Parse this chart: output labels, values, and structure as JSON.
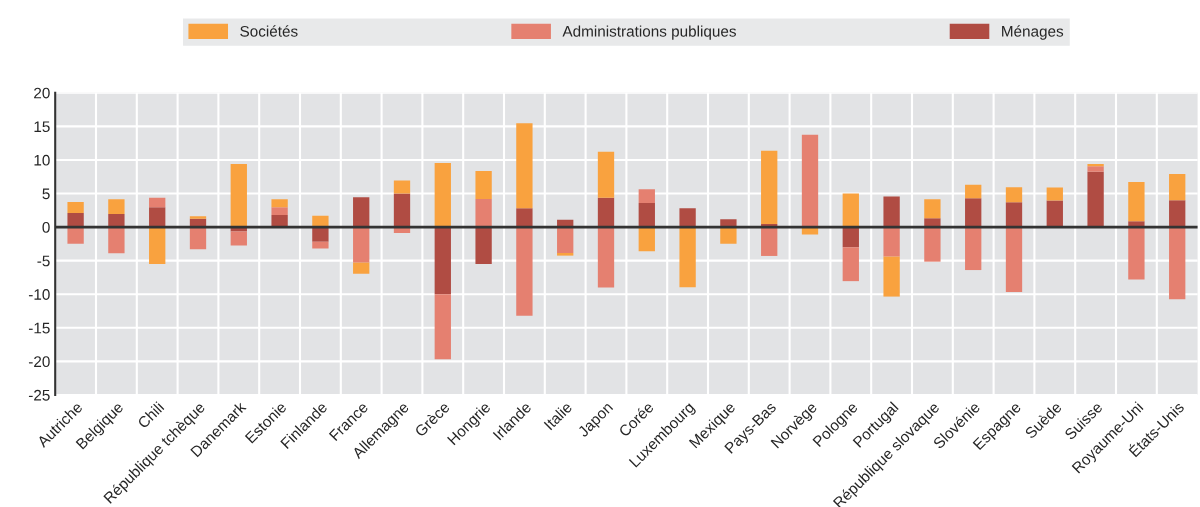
{
  "chart_data": {
    "type": "bar",
    "stacked": true,
    "categories": [
      "Autriche",
      "Belgique",
      "Chili",
      "République tchèque",
      "Danemark",
      "Estonie",
      "Finlande",
      "France",
      "Allemagne",
      "Grèce",
      "Hongrie",
      "Irlande",
      "Italie",
      "Japon",
      "Corée",
      "Luxembourg",
      "Mexique",
      "Pays-Bas",
      "Norvège",
      "Pologne",
      "Portugal",
      "République slovaque",
      "Slovénie",
      "Espagne",
      "Suède",
      "Suisse",
      "Royaume-Uni",
      "États-Unis"
    ],
    "series": [
      {
        "name": "Ménages",
        "color": "#b04c43",
        "values": [
          2.1,
          1.95,
          2.95,
          1.25,
          -0.65,
          1.8,
          -2.2,
          4.45,
          5.0,
          -10.0,
          -5.5,
          2.8,
          1.1,
          4.35,
          3.6,
          2.8,
          1.15,
          0.45,
          null,
          -3.0,
          4.55,
          1.3,
          4.3,
          3.7,
          3.95,
          8.25,
          0.85,
          4.0
        ]
      },
      {
        "name": "Administrations publiques",
        "color": "#e58070",
        "values": [
          -2.5,
          -3.9,
          1.4,
          -3.3,
          -2.1,
          1.15,
          -1.0,
          -5.3,
          -0.9,
          -9.7,
          4.2,
          -13.2,
          -3.85,
          -9.0,
          2.05,
          null,
          null,
          -4.3,
          13.75,
          -5.05,
          -4.4,
          -5.15,
          -6.4,
          -9.65,
          null,
          0.8,
          -7.8,
          -10.75
        ]
      },
      {
        "name": "Sociétés",
        "color": "#f9a23f",
        "values": [
          1.65,
          2.2,
          -5.5,
          0.35,
          9.4,
          1.2,
          1.7,
          -1.65,
          1.95,
          9.55,
          4.15,
          12.65,
          -0.4,
          6.85,
          -3.6,
          -8.95,
          -2.5,
          10.9,
          -1.1,
          5.0,
          -5.95,
          2.85,
          2.0,
          2.25,
          1.95,
          0.35,
          5.85,
          3.9
        ]
      }
    ],
    "ylim": [
      -25,
      20
    ],
    "yticks": [
      -25,
      -20,
      -15,
      -10,
      -5,
      0,
      5,
      10,
      15,
      20
    ],
    "ref_lines": [
      {
        "axis": "y",
        "value": 0,
        "color": "#333333"
      }
    ],
    "grid": true,
    "legend": "top"
  }
}
